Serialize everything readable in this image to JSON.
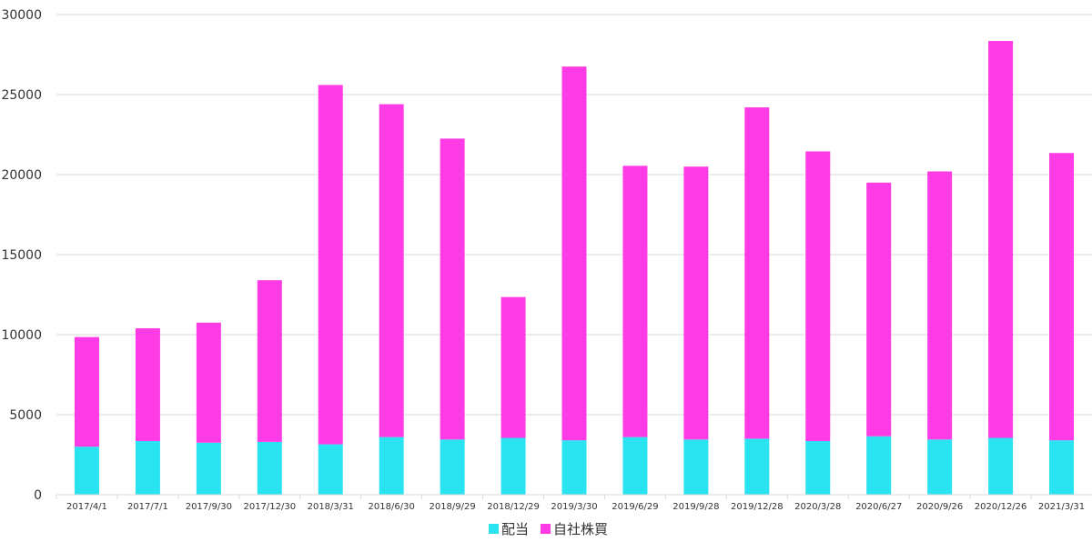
{
  "chart_data": {
    "type": "bar",
    "stacked": true,
    "categories": [
      "2017/4/1",
      "2017/7/1",
      "2017/9/30",
      "2017/12/30",
      "2018/3/31",
      "2018/6/30",
      "2018/9/29",
      "2018/12/29",
      "2019/3/30",
      "2019/6/29",
      "2019/9/28",
      "2019/12/28",
      "2020/3/28",
      "2020/6/27",
      "2020/9/26",
      "2020/12/26",
      "2021/3/31"
    ],
    "series": [
      {
        "name": "配当",
        "color": "#2ae3f0",
        "values": [
          3000,
          3350,
          3250,
          3300,
          3150,
          3600,
          3450,
          3550,
          3400,
          3600,
          3450,
          3500,
          3350,
          3650,
          3450,
          3550,
          3400
        ]
      },
      {
        "name": "自社株買",
        "color": "#ff3be5",
        "values": [
          6850,
          7050,
          7500,
          10100,
          22450,
          20800,
          18800,
          8800,
          23350,
          16950,
          17050,
          20700,
          18100,
          15850,
          16750,
          24800,
          17950
        ]
      }
    ],
    "ylim": [
      0,
      30000
    ],
    "yticks": [
      0,
      5000,
      10000,
      15000,
      20000,
      25000,
      30000
    ],
    "grid": true,
    "legend_position": "bottom"
  }
}
